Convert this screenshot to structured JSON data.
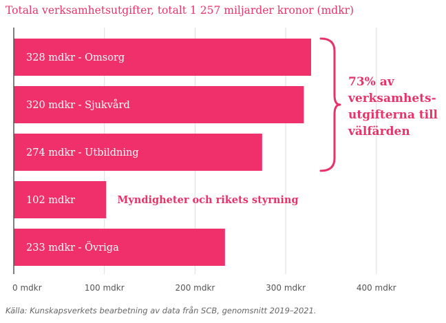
{
  "title": "Totala verksamhetsutgifter, totalt 1 257 miljarder kronor (mdkr)",
  "source": "Källa: Kunskapsverkets bearbetning av data från SCB, genomsnitt 2019–2021.",
  "colors": {
    "bar": "#f0306a",
    "accent": "#e8336a",
    "grid": "#dddddd",
    "axis": "#555555"
  },
  "chart_data": {
    "type": "bar",
    "orientation": "horizontal",
    "categories": [
      "Omsorg",
      "Sjukvård",
      "Utbildning",
      "Myndigheter och rikets styrning",
      "Övriga"
    ],
    "values": [
      328,
      320,
      274,
      102,
      233
    ],
    "bar_labels": [
      "328 mdkr - Omsorg",
      "320 mdkr - Sjukvård",
      "274 mdkr - Utbildning",
      "102 mdkr",
      "233 mdkr - Övriga"
    ],
    "outside_labels": [
      "",
      "",
      "",
      "Myndigheter och rikets styrning",
      ""
    ],
    "xlim": [
      0,
      400
    ],
    "xticks": [
      0,
      100,
      200,
      300,
      400
    ],
    "xtick_labels": [
      "0 mdkr",
      "100 mdkr",
      "200 mdkr",
      "300 mdkr",
      "400 mdkr"
    ],
    "grid": true,
    "annotation": {
      "lines": [
        "73% av",
        "verksamhets-",
        "utgifterna till",
        "välfärden"
      ],
      "brackets_categories": [
        "Omsorg",
        "Sjukvård",
        "Utbildning"
      ]
    }
  }
}
